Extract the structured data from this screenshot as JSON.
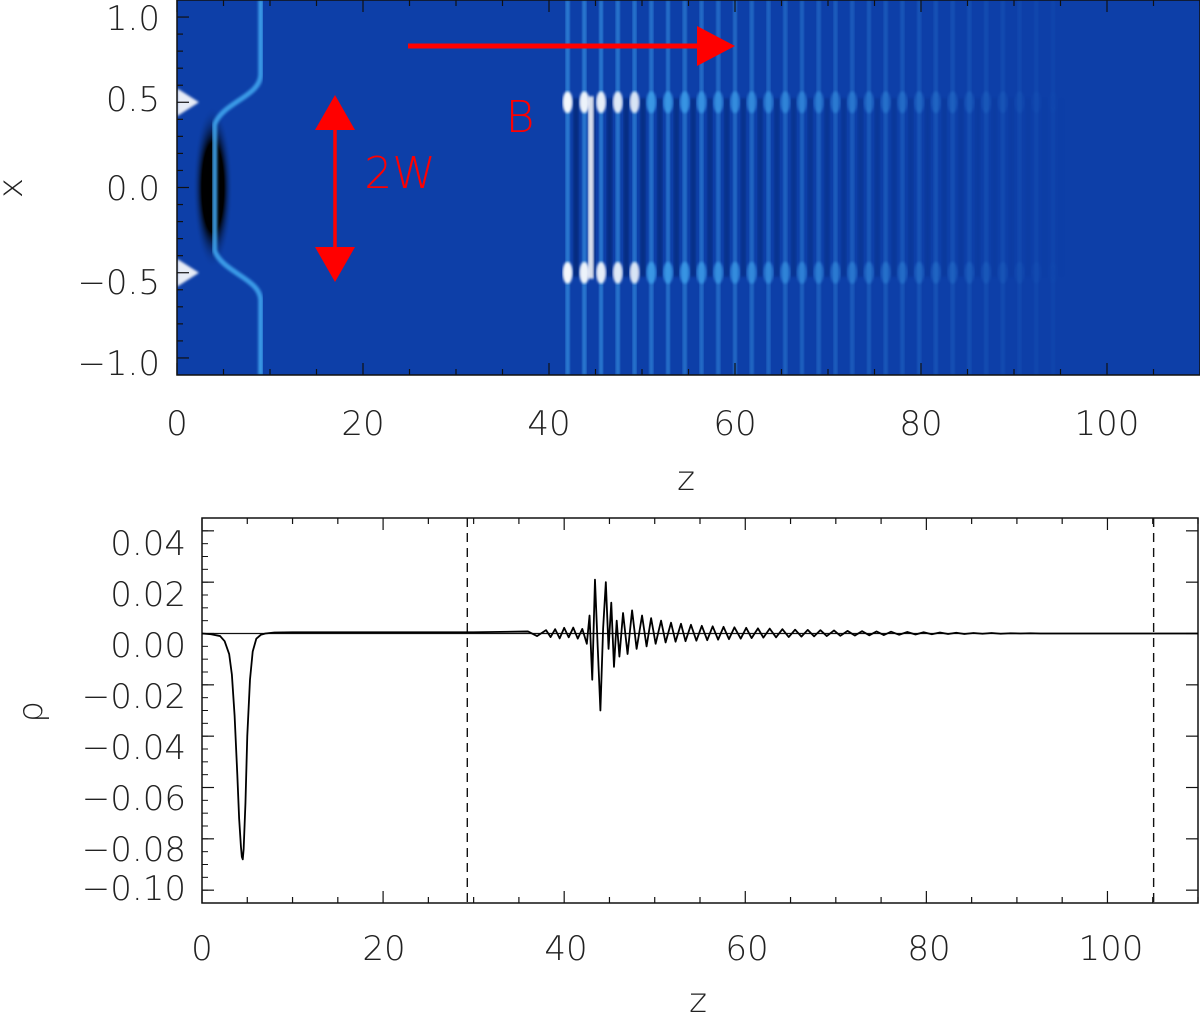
{
  "chart_data": [
    {
      "type": "heatmap",
      "xlabel": "z",
      "ylabel": "x",
      "xlim": [
        0,
        110
      ],
      "ylim": [
        -1.1,
        1.1
      ],
      "xticks": [
        "0",
        "20",
        "40",
        "60",
        "80",
        "100"
      ],
      "yticks": [
        "1.0",
        "0.5",
        "0.0",
        "−0.5",
        "−1.0"
      ],
      "slab_half_width": 0.5,
      "colors": {
        "background": "#0d3fa8",
        "low": "#000000",
        "high": "#ffffff",
        "mid": "#3fa4ee"
      },
      "features": {
        "leading_pulse_z": 4.5,
        "ridge_z": 9,
        "wave_train_start_z": 42,
        "wave_train_end_z": 95,
        "wavelength": 1.8
      },
      "annotations": [
        {
          "text": "B",
          "kind": "arrow",
          "direction": "right",
          "color": "#ff0000"
        },
        {
          "text": "2W",
          "kind": "double-arrow",
          "direction": "vertical",
          "color": "#ff0000"
        }
      ]
    },
    {
      "type": "line",
      "xlabel": "z",
      "ylabel": "ρ",
      "xlim": [
        0,
        110
      ],
      "ylim": [
        -0.105,
        0.045
      ],
      "xticks": [
        "0",
        "20",
        "40",
        "60",
        "80",
        "100"
      ],
      "yticks": [
        "0.04",
        "0.02",
        "0.00",
        "−0.02",
        "−0.04",
        "−0.06",
        "−0.08",
        "−0.10"
      ],
      "ytick_values": [
        0.04,
        0.02,
        0.0,
        -0.02,
        -0.04,
        -0.06,
        -0.08,
        -0.1
      ],
      "vlines": [
        29.3,
        105.1
      ],
      "series": [
        {
          "x": [
            0,
            1,
            2,
            2.5,
            3,
            3.3,
            3.6,
            3.9,
            4.1,
            4.3,
            4.4,
            4.5,
            4.6,
            4.8,
            5.0,
            5.3,
            5.6,
            6.0,
            6.5,
            7.0,
            8.0,
            10,
            20,
            30,
            36,
            37,
            38,
            38.5,
            39,
            39.5,
            40,
            40.5,
            41,
            41.5,
            42,
            42.5,
            42.8,
            43.1,
            43.4,
            43.7,
            44.0,
            44.3,
            44.6,
            44.9,
            45.2,
            45.5,
            45.8,
            46.1,
            46.5,
            47.0,
            47.5,
            48.0,
            48.6,
            49.1,
            49.6,
            50.1,
            50.7,
            51.2,
            51.8,
            52.3,
            52.9,
            53.4,
            54.0,
            54.6,
            55.2,
            55.8,
            56.4,
            57.0,
            57.6,
            58.2,
            58.8,
            59.5,
            60.1,
            60.7,
            61.4,
            62.0,
            62.7,
            63.4,
            64.1,
            64.8,
            65.5,
            66.2,
            66.9,
            67.6,
            68.3,
            69.0,
            69.8,
            70.5,
            71.3,
            72.1,
            72.9,
            73.7,
            74.5,
            75.3,
            76.1,
            77.0,
            77.9,
            78.8,
            79.7,
            80.6,
            81.5,
            82.4,
            83.3,
            84.2,
            85.2,
            86.2,
            87.2,
            88.2,
            89.3,
            90.4,
            91.5,
            92.6,
            94,
            96,
            100,
            110
          ],
          "y": [
            0,
            -0.0003,
            -0.001,
            -0.003,
            -0.008,
            -0.016,
            -0.032,
            -0.055,
            -0.072,
            -0.083,
            -0.087,
            -0.088,
            -0.084,
            -0.066,
            -0.04,
            -0.018,
            -0.007,
            -0.002,
            -0.0005,
            0.0,
            0.0004,
            0.0005,
            0.0005,
            0.0005,
            0.0008,
            -0.001,
            0.0013,
            -0.0014,
            0.0017,
            -0.0019,
            0.0022,
            -0.0015,
            0.0023,
            -0.002,
            0.0018,
            -0.004,
            0.007,
            -0.018,
            0.021,
            -0.005,
            -0.03,
            0.002,
            0.02,
            -0.006,
            0.012,
            -0.013,
            0.005,
            -0.009,
            0.008,
            -0.008,
            0.009,
            -0.006,
            0.007,
            -0.005,
            0.006,
            -0.004,
            0.005,
            -0.0035,
            0.0042,
            -0.0032,
            0.0038,
            -0.003,
            0.0034,
            -0.0028,
            0.003,
            -0.0026,
            0.0028,
            -0.0024,
            0.0026,
            -0.0022,
            0.0024,
            -0.002,
            0.0022,
            -0.0018,
            0.002,
            -0.0016,
            0.0019,
            -0.0015,
            0.0017,
            -0.0014,
            0.0015,
            -0.0012,
            0.0014,
            -0.0011,
            0.0013,
            -0.001,
            0.0012,
            -0.0009,
            0.001,
            -0.0008,
            0.0009,
            -0.0007,
            0.0008,
            -0.0006,
            0.0007,
            -0.0005,
            0.0006,
            -0.0004,
            0.0005,
            -0.0003,
            0.0004,
            -0.0002,
            0.0003,
            -0.0002,
            0.0002,
            -0.0001,
            0.0002,
            -0.0001,
            0.0001,
            0,
            0.0001,
            0,
            0,
            0,
            0,
            0
          ]
        }
      ]
    }
  ]
}
